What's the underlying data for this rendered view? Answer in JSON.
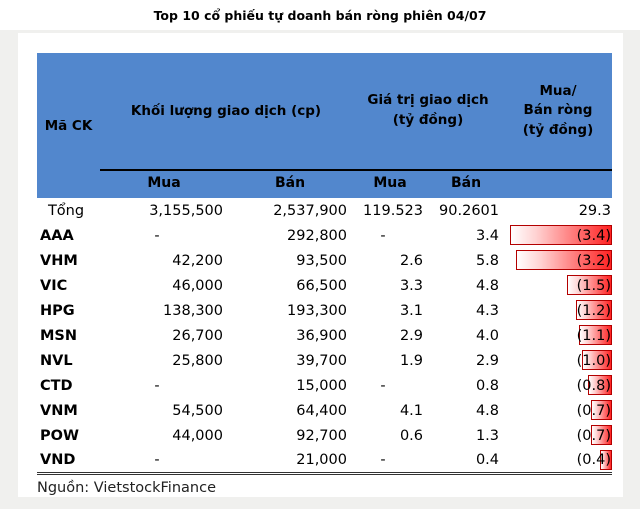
{
  "title": "Top 10 cổ phiếu tự doanh bán ròng phiên 04/07",
  "source": "Nguồn: VietstockFinance",
  "colors": {
    "header_bg": "#5287cd",
    "subheader_rule": "#000000",
    "bar_fill_start": "#ffffff",
    "bar_fill_end": "#ff2222",
    "bar_border": "#b30000",
    "page_gray": "#f0f0ee",
    "double_rule": "#333333",
    "text": "#000000"
  },
  "chart_data": {
    "type": "table",
    "title": "Top 10 cổ phiếu tự doanh bán ròng phiên 04/07",
    "columns": {
      "ticker": "Mã CK",
      "volume": "Khối lượng giao dịch (cp)",
      "value": "Giá trị giao dịch\n(tỷ đồng)",
      "net": "Mua/\nBán ròng\n(tỷ đồng)"
    },
    "sub_headers": [
      "Mua",
      "Bán",
      "Mua",
      "Bán"
    ],
    "bar_note": "red data bars in last column scale with net sell value, max 3.4",
    "rows": [
      {
        "ticker": "Tổng",
        "vol_buy": "3,155,500",
        "vol_sell": "2,537,900",
        "val_buy": "119.523",
        "val_sell": "90.2601",
        "net": "29.3",
        "net_value": 0
      },
      {
        "ticker": "AAA",
        "vol_buy": "-",
        "vol_sell": "292,800",
        "val_buy": "-",
        "val_sell": "3.4",
        "net": "(3.4)",
        "net_value": 3.4
      },
      {
        "ticker": "VHM",
        "vol_buy": "42,200",
        "vol_sell": "93,500",
        "val_buy": "2.6",
        "val_sell": "5.8",
        "net": "(3.2)",
        "net_value": 3.2
      },
      {
        "ticker": "VIC",
        "vol_buy": "46,000",
        "vol_sell": "66,500",
        "val_buy": "3.3",
        "val_sell": "4.8",
        "net": "(1.5)",
        "net_value": 1.5
      },
      {
        "ticker": "HPG",
        "vol_buy": "138,300",
        "vol_sell": "193,300",
        "val_buy": "3.1",
        "val_sell": "4.3",
        "net": "(1.2)",
        "net_value": 1.2
      },
      {
        "ticker": "MSN",
        "vol_buy": "26,700",
        "vol_sell": "36,900",
        "val_buy": "2.9",
        "val_sell": "4.0",
        "net": "(1.1)",
        "net_value": 1.1
      },
      {
        "ticker": "NVL",
        "vol_buy": "25,800",
        "vol_sell": "39,700",
        "val_buy": "1.9",
        "val_sell": "2.9",
        "net": "(1.0)",
        "net_value": 1.0
      },
      {
        "ticker": "CTD",
        "vol_buy": "-",
        "vol_sell": "15,000",
        "val_buy": "-",
        "val_sell": "0.8",
        "net": "(0.8)",
        "net_value": 0.8
      },
      {
        "ticker": "VNM",
        "vol_buy": "54,500",
        "vol_sell": "64,400",
        "val_buy": "4.1",
        "val_sell": "4.8",
        "net": "(0.7)",
        "net_value": 0.7
      },
      {
        "ticker": "POW",
        "vol_buy": "44,000",
        "vol_sell": "92,700",
        "val_buy": "0.6",
        "val_sell": "1.3",
        "net": "(0.7)",
        "net_value": 0.7
      },
      {
        "ticker": "VND",
        "vol_buy": "-",
        "vol_sell": "21,000",
        "val_buy": "-",
        "val_sell": "0.4",
        "net": "(0.4)",
        "net_value": 0.4
      }
    ]
  }
}
